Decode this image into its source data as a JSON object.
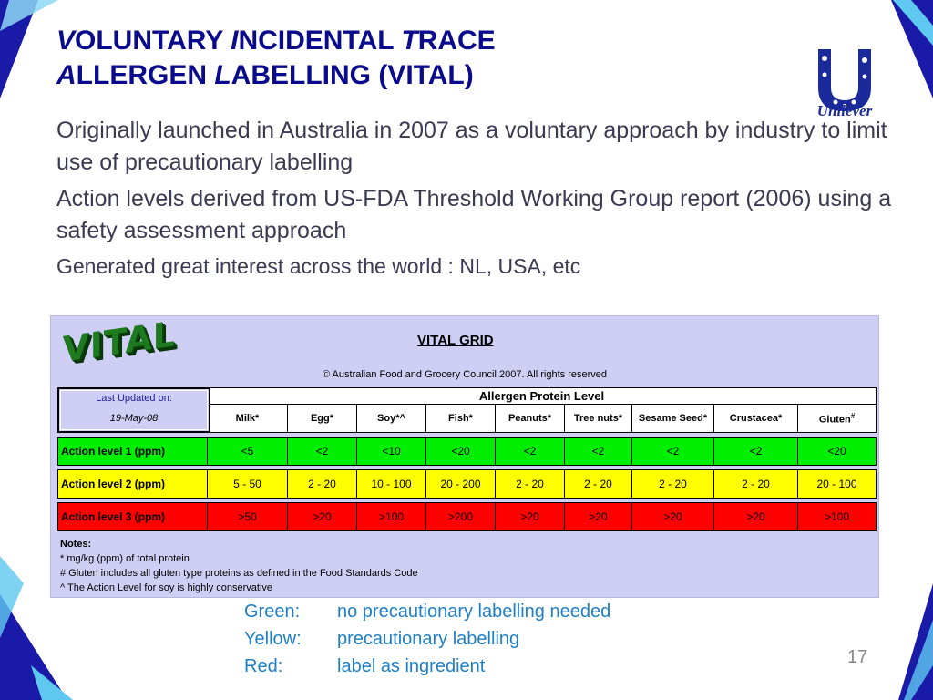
{
  "title": {
    "line1": [
      {
        "cap": "V",
        "rest": "OLUNTARY "
      },
      {
        "cap": "I",
        "rest": "NCIDENTAL "
      },
      {
        "cap": "T",
        "rest": "RACE"
      }
    ],
    "line2": [
      {
        "cap": "A",
        "rest": "LLERGEN "
      },
      {
        "cap": "L",
        "rest": "ABELLING (VITAL)"
      }
    ]
  },
  "bullets": [
    "Originally launched in Australia in 2007 as a voluntary approach by industry to limit use of precautionary labelling",
    "Action levels derived from US-FDA Threshold Working Group report (2006) using a safety assessment approach",
    "Generated great interest across the world : NL, USA, etc"
  ],
  "logo": {
    "text": "Unilever"
  },
  "grid": {
    "logo_text": "VITAL",
    "title": "VITAL GRID",
    "copyright": "© Australian Food and Grocery Council 2007.  All rights reserved",
    "updated_label": "Last Updated on:",
    "updated_date": "19-May-08",
    "header": "Allergen Protein Level",
    "columns": [
      "Milk*",
      "Egg*",
      "Soy*^",
      "Fish*",
      "Peanuts*",
      "Tree nuts*",
      "Sesame Seed*",
      "Crustacea*",
      "Gluten"
    ],
    "gluten_sup": "#",
    "rows": [
      {
        "label": "Action level 1 (ppm)",
        "color": "green",
        "values": [
          "<5",
          "<2",
          "<10",
          "<20",
          "<2",
          "<2",
          "<2",
          "<2",
          "<20"
        ]
      },
      {
        "label": "Action level 2 (ppm)",
        "color": "yellow",
        "values": [
          "5 - 50",
          "2 - 20",
          "10 - 100",
          "20 - 200",
          "2 - 20",
          "2 - 20",
          "2 - 20",
          "2 - 20",
          "20 - 100"
        ]
      },
      {
        "label": "Action level 3 (ppm)",
        "color": "red",
        "values": [
          ">50",
          ">20",
          ">100",
          ">200",
          ">20",
          ">20",
          ">20",
          ">20",
          ">100"
        ]
      }
    ],
    "notes": {
      "heading": "Notes:",
      "lines": [
        "* mg/kg (ppm) of total protein",
        "# Gluten includes all gluten type proteins as defined in the Food Standards Code",
        "^ The Action Level for soy is highly conservative"
      ]
    }
  },
  "legend": [
    {
      "key": "Green:",
      "text": "no precautionary labelling needed"
    },
    {
      "key": "Yellow:",
      "text": "precautionary labelling"
    },
    {
      "key": "Red:",
      "text": "label as ingredient"
    }
  ],
  "page_number": "17",
  "colors": {
    "title": "#0a0a8c",
    "legend": "#1f7fc4",
    "deco_dark": "#1a1aa8",
    "deco_light": "#5ec8f0"
  }
}
